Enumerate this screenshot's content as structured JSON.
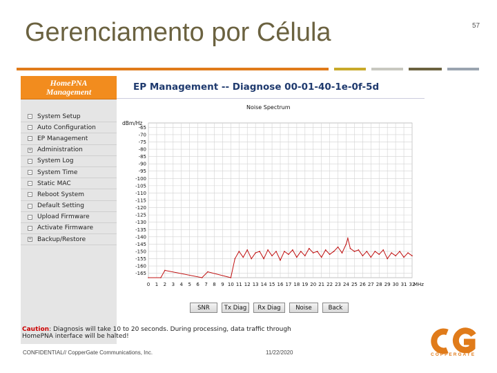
{
  "slide": {
    "title": "Gerenciamento por Célula",
    "page_number": "57",
    "footer_confidential": "CONFIDENTIAL// CopperGate Communications, Inc.",
    "footer_date": "11/22/2020",
    "logo_text": "COPPERGATE",
    "rule_colors": [
      "#e07b1a",
      "#c8a92a",
      "#c8c8c0",
      "#6b6240",
      "#9aa4b0"
    ]
  },
  "app": {
    "sidebar_header": [
      "HomePNA",
      "Management"
    ],
    "sidebar_items": [
      {
        "label": "System Setup",
        "bullet": "-"
      },
      {
        "label": "Auto Configuration",
        "bullet": "-"
      },
      {
        "label": "EP Management",
        "bullet": "-"
      },
      {
        "label": "Administration",
        "bullet": "+"
      },
      {
        "label": "System Log",
        "bullet": "-"
      },
      {
        "label": "System Time",
        "bullet": "-"
      },
      {
        "label": "Static MAC",
        "bullet": "-"
      },
      {
        "label": "Reboot System",
        "bullet": "-"
      },
      {
        "label": "Default Setting",
        "bullet": "-"
      },
      {
        "label": "Upload Firmware",
        "bullet": "-"
      },
      {
        "label": "Activate Firmware",
        "bullet": "-"
      },
      {
        "label": "Backup/Restore",
        "bullet": "+"
      }
    ],
    "page_title": "EP Management -- Diagnose 00-01-40-1e-0f-5d",
    "buttons": [
      "SNR",
      "Tx Diag",
      "Rx Diag",
      "Noise",
      "Back"
    ],
    "caution_label": "Caution",
    "caution_text": ": Diagnosis will take 10 to 20 seconds. During processing, data traffic through HomePNA interface will be halted!"
  },
  "chart_data": {
    "type": "line",
    "title": "Noise Spectrum",
    "ylabel": "dBm/Hz",
    "xlabel": "MHz",
    "y_ticks": [
      -65,
      -70,
      -75,
      -80,
      -85,
      -90,
      -95,
      -100,
      -105,
      -110,
      -115,
      -120,
      -125,
      -130,
      -135,
      -140,
      -145,
      -150,
      -155,
      -160,
      -165
    ],
    "x_ticks": [
      "0",
      "1",
      "2",
      "3",
      "4",
      "5",
      "6",
      "7",
      "8",
      "9",
      "10",
      "11",
      "12",
      "13",
      "14",
      "15",
      "16",
      "17",
      "18",
      "19",
      "20",
      "21",
      "22",
      "23",
      "24",
      "25",
      "26",
      "27",
      "28",
      "29",
      "30",
      "31",
      "32"
    ],
    "ylim": [
      -168,
      -62
    ],
    "xlim": [
      0,
      32
    ],
    "grid": true,
    "series": [
      {
        "color": "#c01010",
        "x": [
          0,
          1.5,
          2,
          6.5,
          7.2,
          10,
          10.5,
          11,
          11.5,
          12,
          12.5,
          13,
          13.5,
          14,
          14.5,
          15,
          15.5,
          16,
          16.5,
          17,
          17.5,
          18,
          18.5,
          19,
          19.5,
          20,
          20.5,
          21,
          21.5,
          22,
          22.5,
          23,
          23.5,
          24,
          24.2,
          24.5,
          25,
          25.5,
          26,
          26.5,
          27,
          27.5,
          28,
          28.5,
          29,
          29.5,
          30,
          30.5,
          31,
          31.5,
          32
        ],
        "y": [
          -168,
          -168,
          -163,
          -168,
          -164,
          -168,
          -155,
          -150,
          -154,
          -149,
          -155,
          -151,
          -150,
          -155,
          -149,
          -153,
          -150,
          -156,
          -150,
          -152,
          -149,
          -154,
          -150,
          -153,
          -148,
          -151,
          -150,
          -154,
          -149,
          -152,
          -150,
          -147,
          -151,
          -145,
          -141,
          -148,
          -150,
          -149,
          -153,
          -150,
          -154,
          -150,
          -152,
          -149,
          -155,
          -151,
          -153,
          -150,
          -154,
          -151,
          -153
        ]
      }
    ]
  }
}
